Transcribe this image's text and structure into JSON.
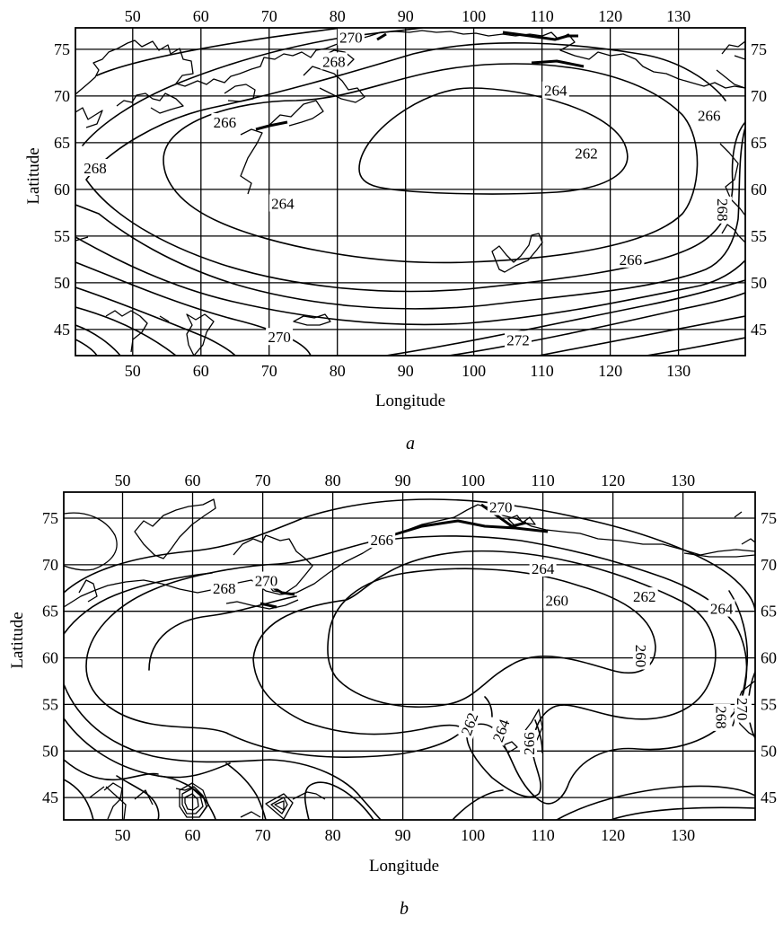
{
  "axis_titles": {
    "x": "Longitude",
    "y": "Latitude"
  },
  "longitude_ticks": [
    50,
    60,
    70,
    80,
    90,
    100,
    110,
    120,
    130
  ],
  "latitude_ticks": [
    75,
    70,
    65,
    60,
    55,
    50,
    45
  ],
  "panels": [
    {
      "letter": "a",
      "contour_labels": [
        {
          "id": "a-270-top",
          "text": "270",
          "lon": 82,
          "lat": 76.3
        },
        {
          "id": "a-268-top",
          "text": "268",
          "lon": 79.5,
          "lat": 73.7
        },
        {
          "id": "a-264-ne",
          "text": "264",
          "lon": 112,
          "lat": 70.6
        },
        {
          "id": "a-266-west",
          "text": "266",
          "lon": 63.5,
          "lat": 67.2
        },
        {
          "id": "a-266-ne",
          "text": "266",
          "lon": 134.5,
          "lat": 67.9
        },
        {
          "id": "a-262",
          "text": "262",
          "lon": 116.5,
          "lat": 63.9
        },
        {
          "id": "a-268-west",
          "text": "268",
          "lon": 44.5,
          "lat": 62.3
        },
        {
          "id": "a-264-center",
          "text": "264",
          "lon": 72,
          "lat": 58.5
        },
        {
          "id": "a-268-east",
          "text": "268",
          "lon": 136.5,
          "lat": 57.8
        },
        {
          "id": "a-266-south",
          "text": "266",
          "lon": 123,
          "lat": 52.5
        },
        {
          "id": "a-270-south",
          "text": "270",
          "lon": 71.5,
          "lat": 44.2
        },
        {
          "id": "a-272",
          "text": "272",
          "lon": 106.5,
          "lat": 43.9
        }
      ]
    },
    {
      "letter": "b",
      "contour_labels": [
        {
          "id": "b-270-top",
          "text": "270",
          "lon": 104,
          "lat": 76.2
        },
        {
          "id": "b-266-north",
          "text": "266",
          "lon": 87,
          "lat": 72.7
        },
        {
          "id": "b-264-north",
          "text": "264",
          "lon": 110,
          "lat": 69.6
        },
        {
          "id": "b-270-west",
          "text": "270",
          "lon": 70.5,
          "lat": 68.3
        },
        {
          "id": "b-268-west",
          "text": "268",
          "lon": 64.5,
          "lat": 67.5
        },
        {
          "id": "b-260-north",
          "text": "260",
          "lon": 112,
          "lat": 66.2
        },
        {
          "id": "b-262-ne",
          "text": "262",
          "lon": 124.5,
          "lat": 66.6
        },
        {
          "id": "b-264-east",
          "text": "264",
          "lon": 135.5,
          "lat": 65.3
        },
        {
          "id": "b-260-east",
          "text": "260",
          "lon": 124,
          "lat": 60.2
        },
        {
          "id": "b-270-east",
          "text": "270",
          "lon": 138.5,
          "lat": 54.5
        },
        {
          "id": "b-268-east",
          "text": "268",
          "lon": 135.5,
          "lat": 53.6
        },
        {
          "id": "b-262-center",
          "text": "262",
          "lon": 99.5,
          "lat": 52.9
        },
        {
          "id": "b-264-center",
          "text": "264",
          "lon": 104,
          "lat": 52.2
        },
        {
          "id": "b-266-center",
          "text": "266",
          "lon": 108,
          "lat": 50.8
        }
      ]
    }
  ]
}
